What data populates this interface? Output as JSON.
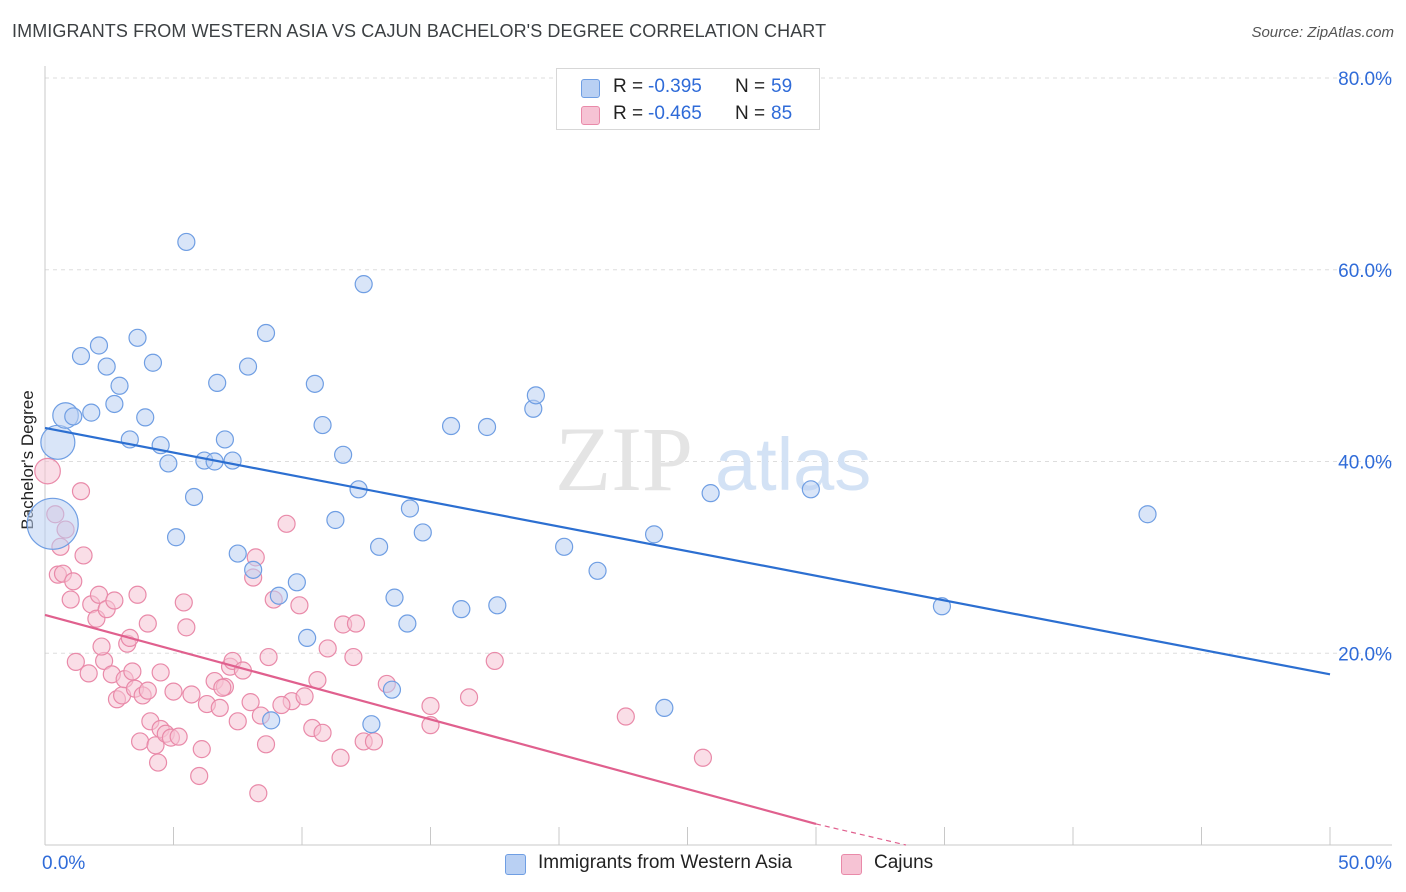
{
  "header": {
    "title": "IMMIGRANTS FROM WESTERN ASIA VS CAJUN BACHELOR'S DEGREE CORRELATION CHART",
    "source": "Source: ZipAtlas.com"
  },
  "watermark": {
    "zip": "ZIP",
    "atlas": "atlas"
  },
  "legend_top": {
    "rows": [
      {
        "r_label": "R =",
        "r_value": "-0.395",
        "n_label": "N =",
        "n_value": "59"
      },
      {
        "r_label": "R =",
        "r_value": "-0.465",
        "n_label": "N =",
        "n_value": "85"
      }
    ]
  },
  "legend_bottom": {
    "series1": "Immigrants from Western Asia",
    "series2": "Cajuns"
  },
  "colors": {
    "blue_fill": "#b9d0f3",
    "blue_stroke": "#6f9ee3",
    "blue_line": "#2c6fd1",
    "pink_fill": "#f6c3d4",
    "pink_stroke": "#e98aa9",
    "pink_line": "#e0608e",
    "axis_text": "#2f6bd8",
    "grid": "#dddddd"
  },
  "chart_data": {
    "type": "scatter",
    "title": "IMMIGRANTS FROM WESTERN ASIA VS CAJUN BACHELOR'S DEGREE CORRELATION CHART",
    "xlabel": "",
    "ylabel": "Bachelor's Degree",
    "xlim": [
      0,
      50
    ],
    "ylim": [
      0,
      80
    ],
    "x_tick_labels": [
      {
        "value": 0,
        "label": "0.0%"
      },
      {
        "value": 50,
        "label": "50.0%"
      }
    ],
    "y_tick_labels": [
      {
        "value": 20,
        "label": "20.0%"
      },
      {
        "value": 40,
        "label": "40.0%"
      },
      {
        "value": 60,
        "label": "60.0%"
      },
      {
        "value": 80,
        "label": "80.0%"
      }
    ],
    "grid": true,
    "legend_position": "bottom",
    "series": [
      {
        "name": "Immigrants from Western Asia",
        "color": "#6f9ee3",
        "R": -0.395,
        "N": 59,
        "trend": {
          "x": [
            0,
            50
          ],
          "y": [
            43.5,
            17.8
          ]
        },
        "points": [
          {
            "x": 0.3,
            "y": 33.5,
            "s": 3
          },
          {
            "x": 0.5,
            "y": 42,
            "s": 2
          },
          {
            "x": 0.8,
            "y": 44.8,
            "s": 1.5
          },
          {
            "x": 1.1,
            "y": 44.7,
            "s": 1
          },
          {
            "x": 1.4,
            "y": 51
          },
          {
            "x": 1.8,
            "y": 45.1
          },
          {
            "x": 2.1,
            "y": 52.1
          },
          {
            "x": 2.4,
            "y": 49.9
          },
          {
            "x": 2.7,
            "y": 46
          },
          {
            "x": 2.9,
            "y": 47.9
          },
          {
            "x": 3.3,
            "y": 42.3
          },
          {
            "x": 3.6,
            "y": 52.9
          },
          {
            "x": 3.9,
            "y": 44.6
          },
          {
            "x": 4.2,
            "y": 50.3
          },
          {
            "x": 4.5,
            "y": 41.7
          },
          {
            "x": 4.8,
            "y": 39.8
          },
          {
            "x": 5.1,
            "y": 32.1
          },
          {
            "x": 5.5,
            "y": 62.9
          },
          {
            "x": 5.8,
            "y": 36.3
          },
          {
            "x": 6.2,
            "y": 40.1
          },
          {
            "x": 6.6,
            "y": 40
          },
          {
            "x": 6.7,
            "y": 48.2
          },
          {
            "x": 7,
            "y": 42.3
          },
          {
            "x": 7.3,
            "y": 40.1
          },
          {
            "x": 7.5,
            "y": 30.4
          },
          {
            "x": 7.9,
            "y": 49.9
          },
          {
            "x": 8.1,
            "y": 28.7
          },
          {
            "x": 8.6,
            "y": 53.4
          },
          {
            "x": 8.8,
            "y": 13
          },
          {
            "x": 9.1,
            "y": 26
          },
          {
            "x": 9.8,
            "y": 27.4
          },
          {
            "x": 10.2,
            "y": 21.6
          },
          {
            "x": 10.5,
            "y": 48.1
          },
          {
            "x": 10.8,
            "y": 43.8
          },
          {
            "x": 11.3,
            "y": 33.9
          },
          {
            "x": 11.6,
            "y": 40.7
          },
          {
            "x": 12.2,
            "y": 37.1
          },
          {
            "x": 12.4,
            "y": 58.5
          },
          {
            "x": 12.7,
            "y": 12.6
          },
          {
            "x": 13,
            "y": 31.1
          },
          {
            "x": 13.5,
            "y": 16.2
          },
          {
            "x": 13.6,
            "y": 25.8
          },
          {
            "x": 14.1,
            "y": 23.1
          },
          {
            "x": 14.2,
            "y": 35.1
          },
          {
            "x": 14.7,
            "y": 32.6
          },
          {
            "x": 15.8,
            "y": 43.7
          },
          {
            "x": 16.2,
            "y": 24.6
          },
          {
            "x": 17.2,
            "y": 43.6
          },
          {
            "x": 17.6,
            "y": 25
          },
          {
            "x": 19,
            "y": 45.5
          },
          {
            "x": 19.1,
            "y": 46.9
          },
          {
            "x": 20.2,
            "y": 31.1
          },
          {
            "x": 21.5,
            "y": 28.6
          },
          {
            "x": 23.7,
            "y": 32.4
          },
          {
            "x": 24.1,
            "y": 14.3
          },
          {
            "x": 25.9,
            "y": 36.7
          },
          {
            "x": 29.8,
            "y": 37.1
          },
          {
            "x": 34.9,
            "y": 24.9
          },
          {
            "x": 42.9,
            "y": 34.5
          }
        ]
      },
      {
        "name": "Cajuns",
        "color": "#e98aa9",
        "R": -0.465,
        "N": 85,
        "trend": {
          "x": [
            0,
            30
          ],
          "y": [
            24,
            2.2
          ]
        },
        "trend_dashed": {
          "x": [
            30,
            33.5
          ],
          "y": [
            2.2,
            -0.4
          ]
        },
        "points": [
          {
            "x": 0.1,
            "y": 39,
            "s": 1.5
          },
          {
            "x": 0.4,
            "y": 34.5
          },
          {
            "x": 0.5,
            "y": 28.2
          },
          {
            "x": 0.6,
            "y": 31.1
          },
          {
            "x": 0.7,
            "y": 28.3
          },
          {
            "x": 0.8,
            "y": 32.9
          },
          {
            "x": 1,
            "y": 25.6
          },
          {
            "x": 1.1,
            "y": 27.5
          },
          {
            "x": 1.2,
            "y": 19.1
          },
          {
            "x": 1.4,
            "y": 36.9
          },
          {
            "x": 1.5,
            "y": 30.2
          },
          {
            "x": 1.7,
            "y": 17.9
          },
          {
            "x": 1.8,
            "y": 25.1
          },
          {
            "x": 2,
            "y": 23.6
          },
          {
            "x": 2.1,
            "y": 26.1
          },
          {
            "x": 2.3,
            "y": 19.2
          },
          {
            "x": 2.4,
            "y": 24.6
          },
          {
            "x": 2.6,
            "y": 17.8
          },
          {
            "x": 2.7,
            "y": 25.5
          },
          {
            "x": 2.8,
            "y": 15.2
          },
          {
            "x": 3,
            "y": 15.6
          },
          {
            "x": 3.1,
            "y": 17.3
          },
          {
            "x": 3.2,
            "y": 21
          },
          {
            "x": 3.3,
            "y": 21.6
          },
          {
            "x": 3.5,
            "y": 16.3
          },
          {
            "x": 3.6,
            "y": 26.1
          },
          {
            "x": 3.7,
            "y": 10.8
          },
          {
            "x": 3.8,
            "y": 15.6
          },
          {
            "x": 4,
            "y": 16.1
          },
          {
            "x": 4,
            "y": 23.1
          },
          {
            "x": 4.1,
            "y": 12.9
          },
          {
            "x": 4.3,
            "y": 10.4
          },
          {
            "x": 4.4,
            "y": 8.6
          },
          {
            "x": 4.5,
            "y": 12.1
          },
          {
            "x": 4.5,
            "y": 18
          },
          {
            "x": 4.7,
            "y": 11.6
          },
          {
            "x": 4.9,
            "y": 11.2
          },
          {
            "x": 5,
            "y": 16
          },
          {
            "x": 5.2,
            "y": 11.3
          },
          {
            "x": 5.4,
            "y": 25.3
          },
          {
            "x": 5.5,
            "y": 22.7
          },
          {
            "x": 5.7,
            "y": 15.7
          },
          {
            "x": 6,
            "y": 7.2
          },
          {
            "x": 6.1,
            "y": 10
          },
          {
            "x": 6.3,
            "y": 14.7
          },
          {
            "x": 6.6,
            "y": 17.1
          },
          {
            "x": 6.8,
            "y": 14.3
          },
          {
            "x": 7,
            "y": 16.5
          },
          {
            "x": 7.2,
            "y": 18.6
          },
          {
            "x": 7.3,
            "y": 19.2
          },
          {
            "x": 7.5,
            "y": 12.9
          },
          {
            "x": 8,
            "y": 14.9
          },
          {
            "x": 8.1,
            "y": 27.9
          },
          {
            "x": 8.2,
            "y": 30
          },
          {
            "x": 8.4,
            "y": 13.5
          },
          {
            "x": 8.6,
            "y": 10.5
          },
          {
            "x": 8.7,
            "y": 19.6
          },
          {
            "x": 8.9,
            "y": 25.6
          },
          {
            "x": 9.4,
            "y": 33.5
          },
          {
            "x": 9.6,
            "y": 15
          },
          {
            "x": 9.9,
            "y": 25
          },
          {
            "x": 10.1,
            "y": 15.5
          },
          {
            "x": 10.4,
            "y": 12.2
          },
          {
            "x": 10.6,
            "y": 17.2
          },
          {
            "x": 10.8,
            "y": 11.7
          },
          {
            "x": 11,
            "y": 20.5
          },
          {
            "x": 11.5,
            "y": 9.1
          },
          {
            "x": 11.6,
            "y": 23
          },
          {
            "x": 12,
            "y": 19.6
          },
          {
            "x": 12.1,
            "y": 23.1
          },
          {
            "x": 12.4,
            "y": 10.8
          },
          {
            "x": 12.8,
            "y": 10.8
          },
          {
            "x": 13.3,
            "y": 16.8
          },
          {
            "x": 15,
            "y": 14.5
          },
          {
            "x": 15,
            "y": 12.5
          },
          {
            "x": 16.5,
            "y": 15.4
          },
          {
            "x": 17.5,
            "y": 19.2
          },
          {
            "x": 22.6,
            "y": 13.4
          },
          {
            "x": 25.6,
            "y": 9.1
          },
          {
            "x": 8.3,
            "y": 5.4
          },
          {
            "x": 9.2,
            "y": 14.6
          },
          {
            "x": 3.4,
            "y": 18.1
          },
          {
            "x": 2.2,
            "y": 20.7
          },
          {
            "x": 6.9,
            "y": 16.4
          },
          {
            "x": 7.7,
            "y": 18.2
          }
        ]
      }
    ]
  }
}
